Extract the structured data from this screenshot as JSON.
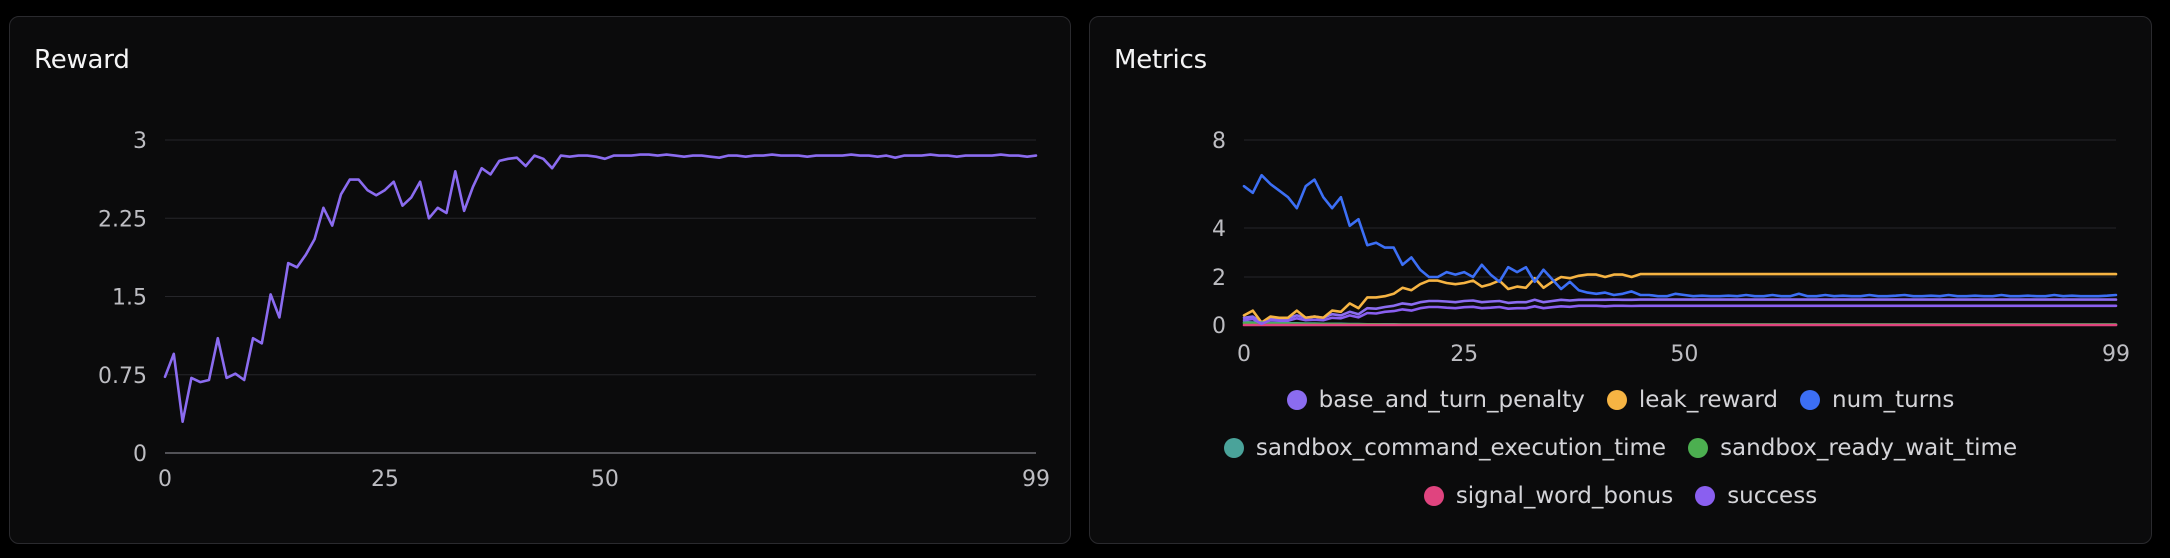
{
  "colors": {
    "background": "#0b0b0c",
    "grid": "#26262a",
    "axis": "#6b6b70",
    "base_and_turn_penalty": "#8b6cf0",
    "leak_reward": "#f6b443",
    "num_turns": "#3c6ff5",
    "sandbox_command_execution_time": "#4aa39a",
    "sandbox_ready_wait_time": "#4caf50",
    "signal_word_bonus": "#e0447f",
    "success": "#8a5ff0"
  },
  "chart_data": [
    {
      "type": "line",
      "title": "Reward",
      "xlabel": "",
      "ylabel": "",
      "xlim": [
        0,
        99
      ],
      "ylim": [
        0,
        3
      ],
      "x_ticks": [
        "0",
        "25",
        "50",
        "99"
      ],
      "x_tick_values": [
        0,
        25,
        50,
        99
      ],
      "y_ticks": [
        "0",
        "0.75",
        "1.5",
        "2.25",
        "3"
      ],
      "y_tick_values": [
        0,
        0.75,
        1.5,
        2.25,
        3
      ],
      "grid": true,
      "series": [
        {
          "color": "#8b6cf0",
          "values": [
            0.73,
            0.95,
            0.3,
            0.72,
            0.68,
            0.7,
            1.1,
            0.72,
            0.76,
            0.7,
            1.1,
            1.05,
            1.52,
            1.3,
            1.82,
            1.78,
            1.9,
            2.05,
            2.35,
            2.18,
            2.48,
            2.62,
            2.62,
            2.52,
            2.47,
            2.52,
            2.6,
            2.37,
            2.45,
            2.6,
            2.25,
            2.35,
            2.3,
            2.7,
            2.32,
            2.55,
            2.73,
            2.67,
            2.8,
            2.82,
            2.83,
            2.75,
            2.85,
            2.82,
            2.73,
            2.85,
            2.84,
            2.85,
            2.85,
            2.84,
            2.82,
            2.85,
            2.85,
            2.85,
            2.86,
            2.86,
            2.85,
            2.86,
            2.85,
            2.84,
            2.85,
            2.85,
            2.84,
            2.83,
            2.85,
            2.85,
            2.84,
            2.85,
            2.85,
            2.86,
            2.85,
            2.85,
            2.85,
            2.84,
            2.85,
            2.85,
            2.85,
            2.85,
            2.86,
            2.85,
            2.85,
            2.84,
            2.85,
            2.83,
            2.85,
            2.85,
            2.85,
            2.86,
            2.85,
            2.85,
            2.84,
            2.85,
            2.85,
            2.85,
            2.85,
            2.86,
            2.85,
            2.85,
            2.84,
            2.85
          ]
        }
      ]
    },
    {
      "type": "line",
      "title": "Metrics",
      "xlabel": "",
      "ylabel": "",
      "xlim": [
        0,
        99
      ],
      "ylim": [
        0,
        8
      ],
      "y_scale": "symlog",
      "x_ticks": [
        "0",
        "25",
        "50",
        "99"
      ],
      "x_tick_values": [
        0,
        25,
        50,
        99
      ],
      "y_ticks": [
        "0",
        "2",
        "4",
        "8"
      ],
      "y_tick_values": [
        0,
        2,
        4,
        8
      ],
      "grid": true,
      "legend_position": "bottom",
      "series": [
        {
          "name": "base_and_turn_penalty",
          "color": "#8b6cf0",
          "values": [
            0.3,
            0.35,
            0.1,
            0.3,
            0.25,
            0.28,
            0.4,
            0.3,
            0.35,
            0.3,
            0.45,
            0.4,
            0.55,
            0.45,
            0.7,
            0.68,
            0.75,
            0.8,
            0.9,
            0.85,
            0.95,
            1.0,
            1.0,
            0.98,
            0.95,
            1.0,
            1.02,
            0.95,
            0.98,
            1.0,
            0.92,
            0.95,
            0.95,
            1.05,
            0.95,
            1.0,
            1.05,
            1.02,
            1.05,
            1.05,
            1.05,
            1.05,
            1.06,
            1.05,
            1.05,
            1.06,
            1.06,
            1.06,
            1.06,
            1.06,
            1.06,
            1.06,
            1.06,
            1.06,
            1.06,
            1.06,
            1.06,
            1.06,
            1.06,
            1.06,
            1.06,
            1.06,
            1.06,
            1.06,
            1.06,
            1.06,
            1.06,
            1.06,
            1.06,
            1.06,
            1.06,
            1.06,
            1.06,
            1.06,
            1.06,
            1.06,
            1.06,
            1.06,
            1.06,
            1.06,
            1.06,
            1.06,
            1.06,
            1.06,
            1.06,
            1.06,
            1.06,
            1.06,
            1.06,
            1.06,
            1.06,
            1.06,
            1.06,
            1.06,
            1.06,
            1.06,
            1.06,
            1.06,
            1.06,
            1.06
          ]
        },
        {
          "name": "leak_reward",
          "color": "#f6b443",
          "values": [
            0.4,
            0.6,
            0.1,
            0.35,
            0.3,
            0.3,
            0.6,
            0.3,
            0.35,
            0.3,
            0.6,
            0.55,
            0.9,
            0.7,
            1.15,
            1.15,
            1.2,
            1.3,
            1.55,
            1.45,
            1.7,
            1.85,
            1.85,
            1.75,
            1.7,
            1.75,
            1.85,
            1.6,
            1.7,
            1.85,
            1.5,
            1.6,
            1.55,
            1.95,
            1.55,
            1.8,
            2.0,
            1.95,
            2.05,
            2.1,
            2.1,
            2.0,
            2.1,
            2.1,
            2.0,
            2.12,
            2.12,
            2.12,
            2.12,
            2.12,
            2.12,
            2.12,
            2.12,
            2.12,
            2.12,
            2.12,
            2.12,
            2.12,
            2.12,
            2.12,
            2.12,
            2.12,
            2.12,
            2.12,
            2.12,
            2.12,
            2.12,
            2.12,
            2.12,
            2.12,
            2.12,
            2.12,
            2.12,
            2.12,
            2.12,
            2.12,
            2.12,
            2.12,
            2.12,
            2.12,
            2.12,
            2.12,
            2.12,
            2.12,
            2.12,
            2.12,
            2.12,
            2.12,
            2.12,
            2.12,
            2.12,
            2.12,
            2.12,
            2.12,
            2.12,
            2.12,
            2.12,
            2.12,
            2.12,
            2.12
          ]
        },
        {
          "name": "num_turns",
          "color": "#3c6ff5",
          "values": [
            5.9,
            5.6,
            6.4,
            6.0,
            5.7,
            5.4,
            4.9,
            5.9,
            6.2,
            5.4,
            4.9,
            5.4,
            4.1,
            4.4,
            3.3,
            3.4,
            3.2,
            3.2,
            2.5,
            2.8,
            2.3,
            2.0,
            2.0,
            2.2,
            2.1,
            2.2,
            2.0,
            2.5,
            2.1,
            1.8,
            2.4,
            2.2,
            2.4,
            1.8,
            2.3,
            1.9,
            1.5,
            1.8,
            1.45,
            1.35,
            1.3,
            1.35,
            1.25,
            1.3,
            1.4,
            1.25,
            1.25,
            1.2,
            1.2,
            1.3,
            1.25,
            1.2,
            1.22,
            1.2,
            1.2,
            1.22,
            1.2,
            1.25,
            1.2,
            1.2,
            1.25,
            1.2,
            1.2,
            1.3,
            1.2,
            1.2,
            1.25,
            1.2,
            1.22,
            1.2,
            1.2,
            1.25,
            1.2,
            1.2,
            1.22,
            1.25,
            1.2,
            1.2,
            1.22,
            1.2,
            1.25,
            1.2,
            1.2,
            1.22,
            1.2,
            1.2,
            1.25,
            1.2,
            1.2,
            1.22,
            1.2,
            1.2,
            1.25,
            1.2,
            1.22,
            1.2,
            1.2,
            1.2,
            1.22,
            1.25
          ]
        },
        {
          "name": "sandbox_command_execution_time",
          "color": "#4aa39a",
          "values": [
            0.12,
            0.1,
            0.1,
            0.08,
            0.08,
            0.07,
            0.07,
            0.06,
            0.06,
            0.05,
            0.05,
            0.05,
            0.04,
            0.04,
            0.03,
            0.03,
            0.03,
            0.03,
            0.02,
            0.02,
            0.02,
            0.02,
            0.02,
            0.02,
            0.02,
            0.02,
            0.02,
            0.02,
            0.02,
            0.02,
            0.02,
            0.02,
            0.02,
            0.02,
            0.02,
            0.02,
            0.02,
            0.02,
            0.02,
            0.02,
            0.02,
            0.02,
            0.02,
            0.02,
            0.02,
            0.02,
            0.02,
            0.02,
            0.02,
            0.02,
            0.02,
            0.02,
            0.02,
            0.02,
            0.02,
            0.02,
            0.02,
            0.02,
            0.02,
            0.02,
            0.02,
            0.02,
            0.02,
            0.02,
            0.02,
            0.02,
            0.02,
            0.02,
            0.02,
            0.02,
            0.02,
            0.02,
            0.02,
            0.02,
            0.02,
            0.02,
            0.02,
            0.02,
            0.02,
            0.02,
            0.02,
            0.02,
            0.02,
            0.02,
            0.02,
            0.02,
            0.02,
            0.02,
            0.02,
            0.02,
            0.02,
            0.02,
            0.02,
            0.02,
            0.02,
            0.02,
            0.02,
            0.02,
            0.02,
            0.02
          ]
        },
        {
          "name": "sandbox_ready_wait_time",
          "color": "#4caf50",
          "values": [
            0.08,
            0.07,
            0.06,
            0.06,
            0.05,
            0.05,
            0.05,
            0.04,
            0.04,
            0.04,
            0.04,
            0.03,
            0.03,
            0.03,
            0.03,
            0.03,
            0.02,
            0.02,
            0.02,
            0.02,
            0.02,
            0.02,
            0.02,
            0.02,
            0.02,
            0.02,
            0.02,
            0.02,
            0.02,
            0.02,
            0.02,
            0.02,
            0.02,
            0.02,
            0.02,
            0.02,
            0.02,
            0.02,
            0.02,
            0.02,
            0.02,
            0.02,
            0.02,
            0.02,
            0.02,
            0.02,
            0.02,
            0.02,
            0.02,
            0.02,
            0.02,
            0.02,
            0.02,
            0.02,
            0.02,
            0.02,
            0.02,
            0.02,
            0.02,
            0.02,
            0.02,
            0.02,
            0.02,
            0.02,
            0.02,
            0.02,
            0.02,
            0.02,
            0.02,
            0.02,
            0.02,
            0.02,
            0.02,
            0.02,
            0.02,
            0.02,
            0.02,
            0.02,
            0.02,
            0.02,
            0.02,
            0.02,
            0.02,
            0.02,
            0.02,
            0.02,
            0.02,
            0.02,
            0.02,
            0.02,
            0.02,
            0.02,
            0.02,
            0.02,
            0.02,
            0.02,
            0.02,
            0.02,
            0.02,
            0.02
          ]
        },
        {
          "name": "signal_word_bonus",
          "color": "#e0447f",
          "values": [
            0.0,
            0.0,
            0.0,
            0.0,
            0.0,
            0.0,
            0.0,
            0.0,
            0.0,
            0.0,
            0.0,
            0.0,
            0.0,
            0.0,
            0.0,
            0.0,
            0.0,
            0.0,
            0.0,
            0.0,
            0.0,
            0.0,
            0.0,
            0.0,
            0.0,
            0.0,
            0.0,
            0.0,
            0.0,
            0.0,
            0.0,
            0.0,
            0.0,
            0.0,
            0.0,
            0.0,
            0.0,
            0.0,
            0.0,
            0.0,
            0.0,
            0.0,
            0.0,
            0.0,
            0.0,
            0.0,
            0.0,
            0.0,
            0.0,
            0.0,
            0.0,
            0.0,
            0.0,
            0.0,
            0.0,
            0.0,
            0.0,
            0.0,
            0.0,
            0.0,
            0.0,
            0.0,
            0.0,
            0.0,
            0.0,
            0.0,
            0.0,
            0.0,
            0.0,
            0.0,
            0.0,
            0.0,
            0.0,
            0.0,
            0.0,
            0.0,
            0.0,
            0.0,
            0.0,
            0.0,
            0.0,
            0.0,
            0.0,
            0.0,
            0.0,
            0.0,
            0.0,
            0.0,
            0.0,
            0.0,
            0.0,
            0.0,
            0.0,
            0.0,
            0.0,
            0.0,
            0.0,
            0.0,
            0.0,
            0.0
          ]
        },
        {
          "name": "success",
          "color": "#8a5ff0",
          "values": [
            0.2,
            0.25,
            0.05,
            0.2,
            0.18,
            0.18,
            0.28,
            0.2,
            0.22,
            0.2,
            0.3,
            0.28,
            0.4,
            0.32,
            0.5,
            0.48,
            0.55,
            0.58,
            0.65,
            0.6,
            0.7,
            0.75,
            0.75,
            0.72,
            0.7,
            0.74,
            0.76,
            0.7,
            0.72,
            0.75,
            0.68,
            0.7,
            0.7,
            0.78,
            0.7,
            0.74,
            0.78,
            0.76,
            0.8,
            0.8,
            0.8,
            0.78,
            0.8,
            0.8,
            0.79,
            0.8,
            0.8,
            0.8,
            0.8,
            0.8,
            0.8,
            0.8,
            0.8,
            0.8,
            0.8,
            0.8,
            0.8,
            0.8,
            0.8,
            0.8,
            0.8,
            0.8,
            0.8,
            0.8,
            0.8,
            0.8,
            0.8,
            0.8,
            0.8,
            0.8,
            0.8,
            0.8,
            0.8,
            0.8,
            0.8,
            0.8,
            0.8,
            0.8,
            0.8,
            0.8,
            0.8,
            0.8,
            0.8,
            0.8,
            0.8,
            0.8,
            0.8,
            0.8,
            0.8,
            0.8,
            0.8,
            0.8,
            0.8,
            0.8,
            0.8,
            0.8,
            0.8,
            0.8,
            0.8,
            0.8
          ]
        }
      ]
    }
  ]
}
